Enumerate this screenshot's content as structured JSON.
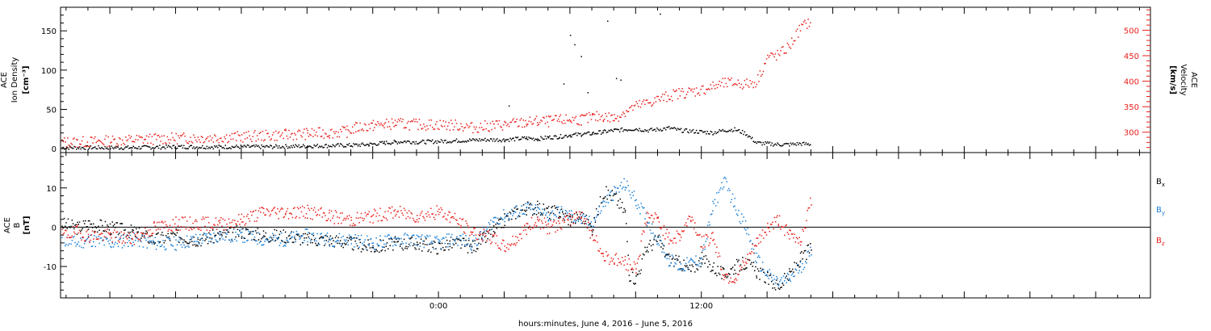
{
  "chart_data": [
    {
      "type": "scatter",
      "title": "",
      "panel": "top",
      "ylabel_left": [
        "ACE",
        "Ion Density",
        "[cm⁻³]"
      ],
      "ylabel_right": [
        "ACE",
        "Velocity",
        "[km/s]"
      ],
      "left_axis": {
        "ylim": [
          -5,
          180
        ],
        "ticks": [
          0,
          50,
          100,
          150
        ],
        "color": "#000000"
      },
      "right_axis": {
        "ylim": [
          260,
          545
        ],
        "ticks": [
          300,
          350,
          400,
          450,
          500
        ],
        "color": "#e8201d"
      },
      "x_axis": {
        "xlim_hours": [
          -17.25,
          32.5
        ],
        "tick_labels": [
          {
            "t": 0,
            "label": "0:00"
          },
          {
            "t": 12,
            "label": "12:00"
          }
        ]
      },
      "series": [
        {
          "axis": "left",
          "color": "#000000",
          "points": [
            [
              -17.2,
              2
            ],
            [
              -16,
              2
            ],
            [
              -14,
              2
            ],
            [
              -12,
              3
            ],
            [
              -10,
              3
            ],
            [
              -8,
              3
            ],
            [
              -6,
              4
            ],
            [
              -4,
              5
            ],
            [
              -3.2,
              6
            ],
            [
              -2.5,
              8
            ],
            [
              -2,
              9
            ],
            [
              -1.5,
              10
            ],
            [
              -1,
              9
            ],
            [
              0,
              10
            ],
            [
              1,
              11
            ],
            [
              2,
              12
            ],
            [
              3,
              12
            ],
            [
              4,
              14
            ],
            [
              4.5,
              13
            ],
            [
              5,
              15
            ],
            [
              5.5,
              16
            ],
            [
              6,
              18
            ],
            [
              6.5,
              19
            ],
            [
              7,
              20
            ],
            [
              7.5,
              22
            ],
            [
              8,
              24
            ],
            [
              8.5,
              25
            ],
            [
              9,
              26
            ],
            [
              9.5,
              24
            ],
            [
              10,
              25
            ],
            [
              10.5,
              27
            ],
            [
              11,
              24
            ],
            [
              11.5,
              23
            ],
            [
              12,
              22
            ],
            [
              12.5,
              21
            ],
            [
              13,
              24
            ],
            [
              13.5,
              25
            ],
            [
              14,
              20
            ],
            [
              14.5,
              8
            ],
            [
              15,
              7
            ],
            [
              15.5,
              6
            ],
            [
              16,
              6
            ],
            [
              16.5,
              7
            ],
            [
              17,
              6
            ]
          ],
          "outliers": [
            [
              6,
              145
            ],
            [
              6.2,
              133
            ],
            [
              6.5,
              118
            ],
            [
              7.7,
              163
            ],
            [
              8.1,
              90
            ],
            [
              8.3,
              88
            ],
            [
              10.1,
              172
            ],
            [
              5.7,
              83
            ],
            [
              6.8,
              72
            ],
            [
              3.2,
              55
            ]
          ]
        },
        {
          "axis": "right",
          "color": "#e8201d",
          "points": [
            [
              -17.2,
              281
            ],
            [
              -16,
              282
            ],
            [
              -15,
              284
            ],
            [
              -14,
              286
            ],
            [
              -13,
              288
            ],
            [
              -12,
              289
            ],
            [
              -11,
              290
            ],
            [
              -10,
              291
            ],
            [
              -9,
              292
            ],
            [
              -8,
              294
            ],
            [
              -7,
              296
            ],
            [
              -6,
              298
            ],
            [
              -5,
              300
            ],
            [
              -4.2,
              302
            ],
            [
              -3.8,
              310
            ],
            [
              -3,
              314
            ],
            [
              -2.5,
              316
            ],
            [
              -2,
              318
            ],
            [
              -1,
              316
            ],
            [
              0,
              316
            ],
            [
              1,
              314
            ],
            [
              1.5,
              310
            ],
            [
              2,
              312
            ],
            [
              2.5,
              314
            ],
            [
              3,
              316
            ],
            [
              3.5,
              318
            ],
            [
              4,
              320
            ],
            [
              4.5,
              322
            ],
            [
              5,
              322
            ],
            [
              5.5,
              324
            ],
            [
              6,
              326
            ],
            [
              6.5,
              326
            ],
            [
              7,
              330
            ],
            [
              7.5,
              332
            ],
            [
              8,
              328
            ],
            [
              8.5,
              342
            ],
            [
              9,
              352
            ],
            [
              9.5,
              358
            ],
            [
              10,
              365
            ],
            [
              10.5,
              372
            ],
            [
              11,
              378
            ],
            [
              11.5,
              380
            ],
            [
              12,
              384
            ],
            [
              12.5,
              390
            ],
            [
              13,
              396
            ],
            [
              13.5,
              398
            ],
            [
              14,
              395
            ],
            [
              14.5,
              400
            ],
            [
              15,
              448
            ],
            [
              15.5,
              452
            ],
            [
              16,
              470
            ],
            [
              16.5,
              505
            ],
            [
              17,
              520
            ]
          ]
        }
      ]
    },
    {
      "type": "scatter",
      "title": "",
      "panel": "bottom",
      "ylabel_left": [
        "ACE",
        "B",
        "[nT]"
      ],
      "ylim": [
        -18,
        19
      ],
      "ticks": [
        -10,
        0,
        10
      ],
      "legend_placement": "right",
      "x_axis": {
        "xlim_hours": [
          -17.25,
          32.5
        ],
        "tick_labels": [
          {
            "t": 0,
            "label": "0:00"
          },
          {
            "t": 12,
            "label": "12:00"
          }
        ]
      },
      "xlabel": "hours:minutes, June  4, 2016 – June  5, 2016",
      "series": [
        {
          "name": "Bx",
          "label_main": "B",
          "label_sub": "x",
          "color": "#000000",
          "points": [
            [
              -17.2,
              1
            ],
            [
              -16.5,
              0
            ],
            [
              -16,
              1
            ],
            [
              -15,
              0
            ],
            [
              -14,
              -1
            ],
            [
              -13,
              -3
            ],
            [
              -12,
              -2
            ],
            [
              -11,
              -3
            ],
            [
              -10,
              -2
            ],
            [
              -9,
              -1
            ],
            [
              -8,
              -2
            ],
            [
              -7,
              -2
            ],
            [
              -6,
              -3
            ],
            [
              -5,
              -3
            ],
            [
              -4,
              -4
            ],
            [
              -3,
              -5
            ],
            [
              -2,
              -4
            ],
            [
              -1,
              -4
            ],
            [
              0,
              -5
            ],
            [
              0.5,
              -4
            ],
            [
              1,
              -4
            ],
            [
              1.5,
              -5
            ],
            [
              2,
              -3
            ],
            [
              2.5,
              -1
            ],
            [
              3,
              2
            ],
            [
              3.5,
              4
            ],
            [
              4,
              5
            ],
            [
              4.5,
              5
            ],
            [
              5,
              4
            ],
            [
              5.5,
              4
            ],
            [
              6,
              2
            ],
            [
              6.5,
              3
            ],
            [
              7,
              0
            ],
            [
              7.5,
              9
            ],
            [
              8,
              8
            ],
            [
              8.5,
              4
            ],
            [
              8.7,
              -12
            ],
            [
              9,
              -13
            ],
            [
              9.5,
              -5
            ],
            [
              10,
              -3
            ],
            [
              10.5,
              -8
            ],
            [
              11,
              -9
            ],
            [
              11.5,
              -11
            ],
            [
              12,
              -8
            ],
            [
              12.5,
              -10
            ],
            [
              13,
              -12
            ],
            [
              13.5,
              -10
            ],
            [
              14,
              -9
            ],
            [
              14.5,
              -11
            ],
            [
              15,
              -13
            ],
            [
              15.5,
              -15
            ],
            [
              16,
              -12
            ],
            [
              16.5,
              -8
            ],
            [
              17,
              -5
            ]
          ]
        },
        {
          "name": "By",
          "label_main": "B",
          "label_sub": "y",
          "color": "#1a7fd6",
          "points": [
            [
              -17.2,
              -3
            ],
            [
              -16.5,
              -4
            ],
            [
              -16,
              -3
            ],
            [
              -15,
              -4
            ],
            [
              -14,
              -3
            ],
            [
              -13,
              -4
            ],
            [
              -12,
              -4
            ],
            [
              -11,
              -3
            ],
            [
              -10,
              -2
            ],
            [
              -9,
              -2
            ],
            [
              -8,
              -3
            ],
            [
              -7,
              -3
            ],
            [
              -6,
              -2
            ],
            [
              -5,
              -3
            ],
            [
              -4,
              -3
            ],
            [
              -3,
              -4
            ],
            [
              -2,
              -3
            ],
            [
              -1,
              -3
            ],
            [
              0,
              -4
            ],
            [
              0.5,
              -3
            ],
            [
              1,
              -3
            ],
            [
              1.5,
              -4
            ],
            [
              2,
              -2
            ],
            [
              2.5,
              2
            ],
            [
              3,
              3
            ],
            [
              3.5,
              4
            ],
            [
              4,
              5
            ],
            [
              4.5,
              4
            ],
            [
              5,
              3
            ],
            [
              5.5,
              4
            ],
            [
              6,
              3
            ],
            [
              6.5,
              2
            ],
            [
              7,
              1
            ],
            [
              7.5,
              6
            ],
            [
              8,
              9
            ],
            [
              8.5,
              11
            ],
            [
              9,
              7
            ],
            [
              9.5,
              2
            ],
            [
              10,
              -3
            ],
            [
              10.5,
              -8
            ],
            [
              11,
              -10
            ],
            [
              11.5,
              -9
            ],
            [
              12,
              -8
            ],
            [
              12.5,
              5
            ],
            [
              13,
              12
            ],
            [
              13.5,
              6
            ],
            [
              14,
              0
            ],
            [
              14.5,
              -8
            ],
            [
              15,
              -12
            ],
            [
              15.5,
              -14
            ],
            [
              16,
              -13
            ],
            [
              16.5,
              -10
            ],
            [
              17,
              -6
            ]
          ]
        },
        {
          "name": "Bz",
          "label_main": "B",
          "label_sub": "z",
          "color": "#e8201d",
          "points": [
            [
              -17.2,
              -2
            ],
            [
              -16.5,
              -1
            ],
            [
              -16,
              -2
            ],
            [
              -15,
              -2
            ],
            [
              -14,
              -3
            ],
            [
              -13,
              0
            ],
            [
              -12,
              1
            ],
            [
              -11,
              1
            ],
            [
              -10,
              1
            ],
            [
              -9,
              2
            ],
            [
              -8,
              4
            ],
            [
              -7,
              4
            ],
            [
              -6,
              4
            ],
            [
              -5,
              3
            ],
            [
              -4,
              2
            ],
            [
              -3,
              3
            ],
            [
              -2,
              4
            ],
            [
              -1,
              3
            ],
            [
              0,
              4
            ],
            [
              0.5,
              3
            ],
            [
              1,
              1
            ],
            [
              1.5,
              -1
            ],
            [
              2,
              -2
            ],
            [
              2.5,
              -3
            ],
            [
              3,
              -5
            ],
            [
              3.5,
              -3
            ],
            [
              4,
              0
            ],
            [
              4.5,
              2
            ],
            [
              5,
              0
            ],
            [
              5.5,
              1
            ],
            [
              6,
              2
            ],
            [
              6.5,
              4
            ],
            [
              7,
              -2
            ],
            [
              7.5,
              -7
            ],
            [
              8,
              -8
            ],
            [
              8.5,
              -9
            ],
            [
              9,
              -10
            ],
            [
              9.5,
              3
            ],
            [
              10,
              2
            ],
            [
              10.5,
              -3
            ],
            [
              11,
              -2
            ],
            [
              11.5,
              3
            ],
            [
              12,
              -4
            ],
            [
              12.5,
              -2
            ],
            [
              13,
              -12
            ],
            [
              13.5,
              -13
            ],
            [
              14,
              -9
            ],
            [
              14.5,
              -4
            ],
            [
              15,
              0
            ],
            [
              15.5,
              2
            ],
            [
              16,
              -2
            ],
            [
              16.5,
              -3
            ],
            [
              17,
              7
            ]
          ]
        }
      ]
    }
  ]
}
